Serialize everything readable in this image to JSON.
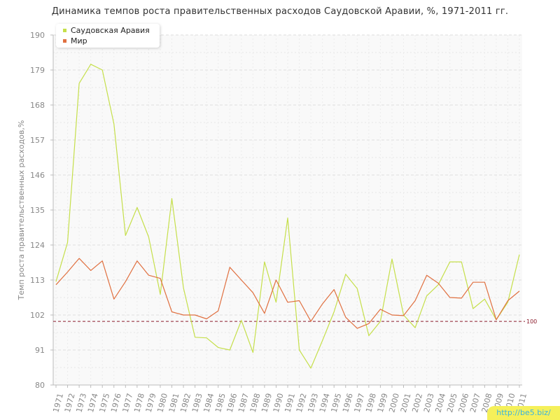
{
  "title": "Динамика темпов роста правительственных расходов Саудовской Аравии, %, 1971-2011 гг.",
  "watermark": "http://be5.biz/",
  "chart_data": {
    "type": "line",
    "title": "Динамика темпов роста правительственных расходов Саудовской Аравии, %, 1971-2011 гг.",
    "xlabel": "",
    "ylabel": "Темп роста правительственных расходов,%",
    "ylim": [
      80,
      190
    ],
    "yticks": [
      80,
      91,
      102,
      113,
      124,
      135,
      146,
      157,
      168,
      179,
      190
    ],
    "grid": true,
    "legend_position": "top-left",
    "categories": [
      "1971",
      "1972",
      "1973",
      "1974",
      "1975",
      "1976",
      "1977",
      "1978",
      "1979",
      "1980",
      "1981",
      "1982",
      "1983",
      "1984",
      "1985",
      "1986",
      "1987",
      "1988",
      "1989",
      "1990",
      "1991",
      "1992",
      "1993",
      "1994",
      "1995",
      "1996",
      "1997",
      "1998",
      "1999",
      "2000",
      "2001",
      "2002",
      "2003",
      "2004",
      "2005",
      "2006",
      "2007",
      "2008",
      "2009",
      "2010",
      "2011"
    ],
    "series": [
      {
        "name": "Саудовская Аравия",
        "color": "#c5df4a",
        "values": [
          112.5,
          124.8,
          174.8,
          180.8,
          179.0,
          162.0,
          127.0,
          135.8,
          126.5,
          108.5,
          138.6,
          110.5,
          95.0,
          94.8,
          91.8,
          91.0,
          100.3,
          90.2,
          118.7,
          106.0,
          132.5,
          91.0,
          85.3,
          94.0,
          103.0,
          114.8,
          110.3,
          95.5,
          100.0,
          119.6,
          102.0,
          98.0,
          108.0,
          111.5,
          118.7,
          118.7,
          104.0,
          107.0,
          100.5,
          106.0,
          121.0
        ]
      },
      {
        "name": "Мир",
        "color": "#e07040",
        "values": [
          111.5,
          115.5,
          119.8,
          116.0,
          119.0,
          107.0,
          112.5,
          119.0,
          114.5,
          113.5,
          103.0,
          102.0,
          102.0,
          100.8,
          103.3,
          117.0,
          113.0,
          109.0,
          102.5,
          113.0,
          106.0,
          106.5,
          100.0,
          105.5,
          110.0,
          101.3,
          97.8,
          99.3,
          103.8,
          102.0,
          101.8,
          106.5,
          114.5,
          112.0,
          107.5,
          107.3,
          112.3,
          112.3,
          100.5,
          106.5,
          109.5
        ]
      }
    ],
    "reference_line": {
      "value": 100,
      "label": "100",
      "color": "#8b1c2c"
    }
  }
}
